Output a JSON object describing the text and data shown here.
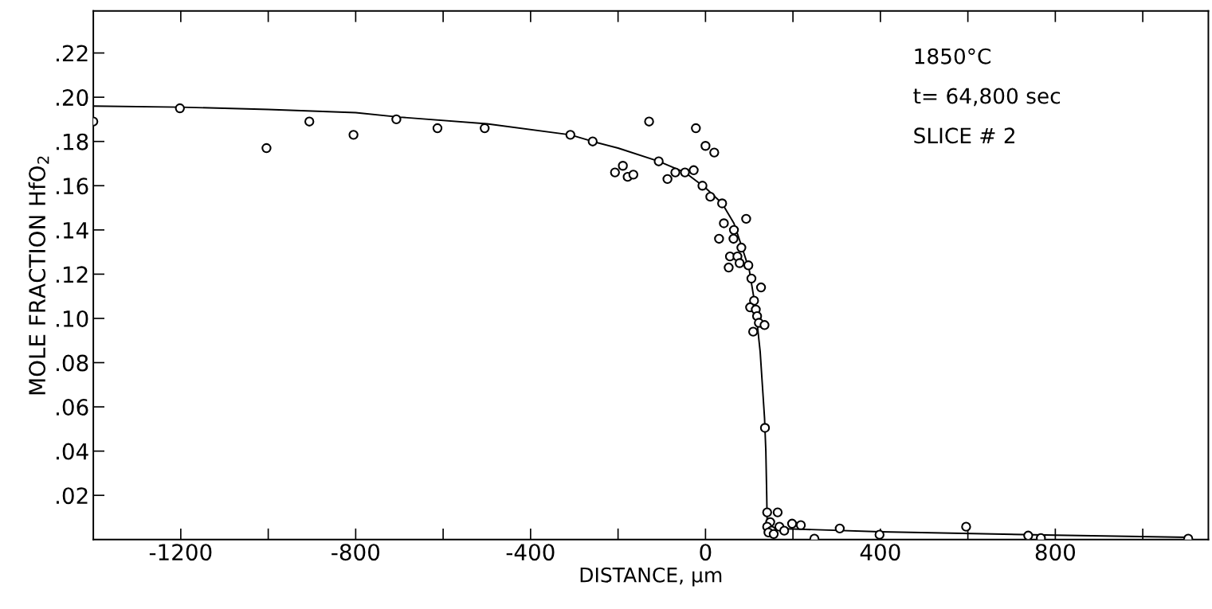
{
  "chart_data": {
    "type": "scatter",
    "xlabel": "DISTANCE, μm",
    "ylabel": "MOLE FRACTION HfO$_{2}$",
    "annotations": [
      "1850°C",
      "t= 64,800 sec",
      "SLICE # 2"
    ],
    "xlim": [
      -1400,
      1150
    ],
    "ylim": [
      0,
      0.239
    ],
    "xticks": [
      -1200,
      {
        "value": -1000,
        "label": null
      },
      -800,
      {
        "value": -600,
        "label": null
      },
      -400,
      {
        "value": -200,
        "label": null
      },
      0,
      {
        "value": 200,
        "label": null
      },
      400,
      {
        "value": 600,
        "label": null
      },
      800,
      {
        "value": 1000,
        "label": null
      }
    ],
    "yticks": [
      {
        "value": 0.02,
        "label": ".02"
      },
      {
        "value": 0.04,
        "label": ".04"
      },
      {
        "value": 0.06,
        "label": ".06"
      },
      {
        "value": 0.08,
        "label": ".08"
      },
      {
        "value": 0.1,
        "label": ".10"
      },
      {
        "value": 0.12,
        "label": ".12"
      },
      {
        "value": 0.14,
        "label": ".14"
      },
      {
        "value": 0.16,
        "label": ".16"
      },
      {
        "value": 0.18,
        "label": ".18"
      },
      {
        "value": 0.2,
        "label": ".20"
      },
      {
        "value": 0.22,
        "label": ".22"
      }
    ],
    "grid": false,
    "legend": false,
    "series": [
      {
        "marker": "circle",
        "color": "#000000",
        "x": [
          -1400,
          -1202,
          -1004,
          -906,
          -805,
          -707,
          -613,
          -505,
          -309,
          -258,
          -129,
          -207,
          -189,
          -178,
          -165,
          -107,
          -87,
          -69,
          -47,
          -27,
          -22,
          0,
          20,
          -7,
          11,
          38,
          93,
          42,
          65,
          64,
          31,
          82,
          56,
          73,
          78,
          53,
          98,
          105,
          127,
          111,
          102,
          115,
          118,
          122,
          135,
          109,
          136,
          141,
          165,
          148,
          141,
          169,
          198,
          218,
          180,
          151,
          144,
          156,
          249,
          307,
          398,
          596,
          738,
          767,
          1104
        ],
        "values": [
          0.189,
          0.195,
          0.177,
          0.189,
          0.183,
          0.19,
          0.186,
          0.186,
          0.183,
          0.18,
          0.189,
          0.166,
          0.169,
          0.164,
          0.165,
          0.171,
          0.163,
          0.166,
          0.166,
          0.167,
          0.186,
          0.178,
          0.175,
          0.16,
          0.155,
          0.152,
          0.145,
          0.143,
          0.14,
          0.136,
          0.136,
          0.132,
          0.128,
          0.128,
          0.125,
          0.123,
          0.124,
          0.118,
          0.114,
          0.108,
          0.105,
          0.104,
          0.101,
          0.098,
          0.097,
          0.094,
          0.0505,
          0.0123,
          0.0123,
          0.0079,
          0.0058,
          0.0058,
          0.0072,
          0.0065,
          0.004,
          0.004,
          0.0032,
          0.0025,
          0.0004,
          0.005,
          0.0022,
          0.0058,
          0.0018,
          0.0007,
          0.0004
        ]
      },
      {
        "type": "line",
        "marker": "none",
        "line_style": "solid",
        "color": "#000000",
        "x": [
          -1400,
          -1200,
          -1000,
          -800,
          -700,
          -500,
          -309,
          -258,
          -200,
          -107,
          -47,
          0,
          38,
          65,
          82,
          100,
          110,
          118,
          125,
          130,
          135,
          138,
          140,
          141,
          150,
          200,
          400,
          800,
          1104
        ],
        "values": [
          0.196,
          0.1955,
          0.1945,
          0.193,
          0.191,
          0.188,
          0.183,
          0.18,
          0.177,
          0.171,
          0.166,
          0.159,
          0.152,
          0.143,
          0.133,
          0.122,
          0.11,
          0.098,
          0.085,
          0.07,
          0.055,
          0.04,
          0.02,
          0.008,
          0.005,
          0.0048,
          0.0035,
          0.002,
          0.001
        ]
      }
    ]
  }
}
